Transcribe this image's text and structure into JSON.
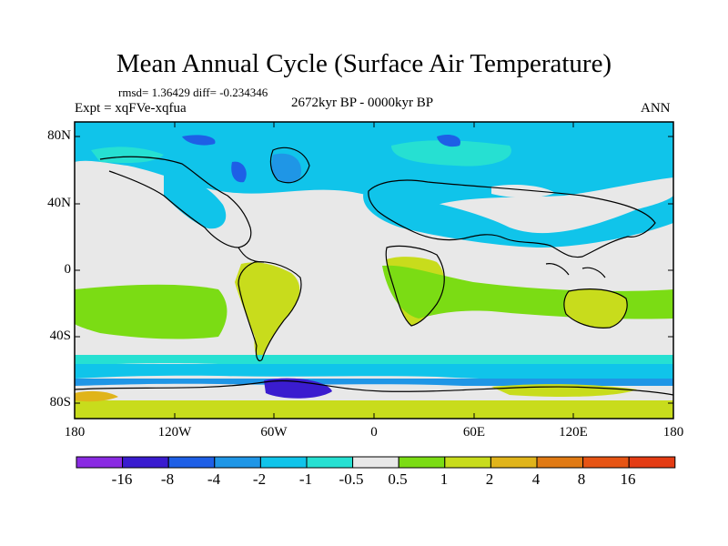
{
  "header": {
    "title": "Mean Annual Cycle (Surface Air Temperature)",
    "stats": "rmsd= 1.36429 diff= -0.234346",
    "expt": "Expt = xqFVe-xqfua",
    "period": "2672kyr BP - 0000kyr BP",
    "season": "ANN"
  },
  "axes": {
    "y_labels": [
      "80N",
      "40N",
      "0",
      "40S",
      "80S"
    ],
    "x_labels": [
      "180",
      "120W",
      "60W",
      "0",
      "60E",
      "120E",
      "180"
    ]
  },
  "colorbar": {
    "labels": [
      "-16",
      "-8",
      "-4",
      "-2",
      "-1",
      "-0.5",
      "0.5",
      "1",
      "2",
      "4",
      "8",
      "16"
    ],
    "colors": [
      "#8a2be2",
      "#3a1ccf",
      "#1e5fe6",
      "#1f96e6",
      "#10c4ea",
      "#26e0d2",
      "#e8e8e8",
      "#7bdc14",
      "#c8dc1c",
      "#e0b41a",
      "#e07a14",
      "#e65414",
      "#e43c14"
    ]
  },
  "map_colors": {
    "neutral": "#e8e8e8",
    "cyan": "#10c4ea",
    "teal": "#26e0d2",
    "blue": "#1f96e6",
    "darkblue": "#3a1ccf",
    "green": "#7bdc14",
    "olive": "#c8dc1c",
    "coast": "#000000"
  }
}
